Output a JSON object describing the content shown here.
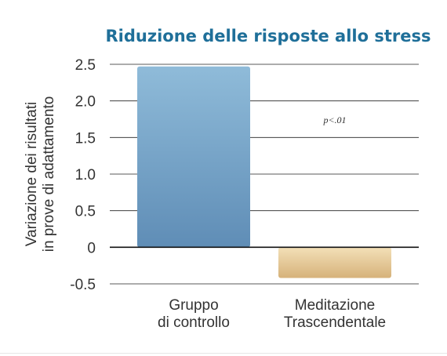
{
  "chart_data": {
    "type": "bar",
    "title": "Riduzione delle risposte allo stress",
    "ylabel_lines": [
      "Variazione dei risultati",
      "in prove di adattamento"
    ],
    "xlabel": "",
    "categories": [
      {
        "lines": [
          "Gruppo",
          "di controllo"
        ]
      },
      {
        "lines": [
          "Meditazione",
          "Trascendentale"
        ]
      }
    ],
    "values": [
      2.47,
      -0.42
    ],
    "ylim": [
      -0.5,
      2.5
    ],
    "yticks": [
      {
        "value": 2.5,
        "label": "2.5"
      },
      {
        "value": 2.0,
        "label": "2.0"
      },
      {
        "value": 1.5,
        "label": "1.5"
      },
      {
        "value": 1.0,
        "label": "1.0"
      },
      {
        "value": 0.5,
        "label": "0.5"
      },
      {
        "value": 0,
        "label": "0"
      },
      {
        "value": -0.5,
        "label": "-0.5"
      }
    ],
    "annotation": "p<.01",
    "grid": true,
    "legend": "none",
    "colors": {
      "title": "#1f6f99",
      "control_bar_top": "#8fbbd9",
      "control_bar_bottom": "#5f8db6",
      "tm_bar_top": "#f3e0b8",
      "tm_bar_bottom": "#d6b27a",
      "gridline": "#222222"
    }
  }
}
